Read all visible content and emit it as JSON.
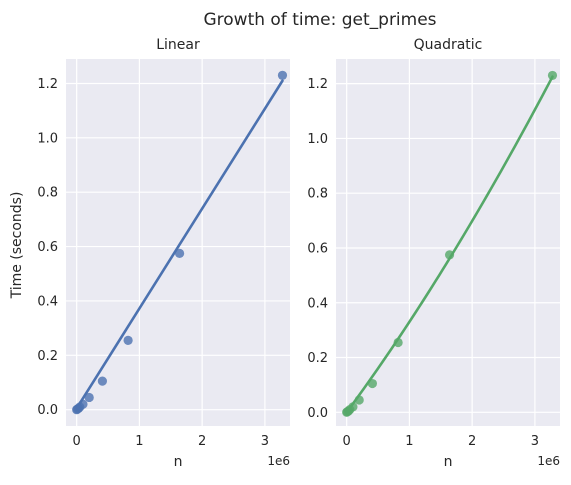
{
  "figure": {
    "title": "Growth of time: get_primes",
    "ylabel": "Time (seconds)"
  },
  "chart_data": [
    {
      "type": "scatter",
      "title": "Linear",
      "xlabel": "n",
      "x_offset_label": "1e6",
      "ylabel": "Time (seconds)",
      "xlim": [
        -0.17,
        3.4
      ],
      "ylim": [
        -0.06,
        1.29
      ],
      "x_ticks": [
        0,
        1,
        2,
        3
      ],
      "y_ticks": [
        0.0,
        0.2,
        0.4,
        0.6,
        0.8,
        1.0,
        1.2
      ],
      "x_tick_labels": [
        "0",
        "1",
        "2",
        "3"
      ],
      "y_tick_labels": [
        "0.0",
        "0.2",
        "0.4",
        "0.6",
        "0.8",
        "1.0",
        "1.2"
      ],
      "grid": true,
      "color": "#4c72b0",
      "fit": "linear",
      "fit_line": {
        "x0": 0,
        "y0": 0.005,
        "x1": 3.28,
        "y1": 1.21
      },
      "points": [
        {
          "x": 0.0,
          "y": 0.0
        },
        {
          "x": 0.01,
          "y": 0.002
        },
        {
          "x": 0.03,
          "y": 0.005
        },
        {
          "x": 0.05,
          "y": 0.01
        },
        {
          "x": 0.1,
          "y": 0.02
        },
        {
          "x": 0.2,
          "y": 0.045
        },
        {
          "x": 0.41,
          "y": 0.105
        },
        {
          "x": 0.82,
          "y": 0.255
        },
        {
          "x": 1.64,
          "y": 0.575
        },
        {
          "x": 3.28,
          "y": 1.23
        }
      ]
    },
    {
      "type": "scatter",
      "title": "Quadratic",
      "xlabel": "n",
      "x_offset_label": "1e6",
      "xlim": [
        -0.17,
        3.4
      ],
      "ylim": [
        -0.05,
        1.29
      ],
      "x_ticks": [
        0,
        1,
        2,
        3
      ],
      "y_ticks": [
        0.0,
        0.2,
        0.4,
        0.6,
        0.8,
        1.0,
        1.2
      ],
      "x_tick_labels": [
        "0",
        "1",
        "2",
        "3"
      ],
      "y_tick_labels": [
        "0.0",
        "0.2",
        "0.4",
        "0.6",
        "0.8",
        "1.0",
        "1.2"
      ],
      "grid": true,
      "color": "#55a868",
      "fit": "quadratic",
      "fit_coeffs": {
        "a": 0.019,
        "b": 0.3113,
        "c": 0.0
      },
      "fit_range": [
        0,
        3.28
      ],
      "points": [
        {
          "x": 0.0,
          "y": 0.0
        },
        {
          "x": 0.01,
          "y": 0.002
        },
        {
          "x": 0.03,
          "y": 0.005
        },
        {
          "x": 0.05,
          "y": 0.01
        },
        {
          "x": 0.1,
          "y": 0.02
        },
        {
          "x": 0.2,
          "y": 0.045
        },
        {
          "x": 0.41,
          "y": 0.105
        },
        {
          "x": 0.82,
          "y": 0.255
        },
        {
          "x": 1.64,
          "y": 0.575
        },
        {
          "x": 3.28,
          "y": 1.23
        }
      ]
    }
  ]
}
